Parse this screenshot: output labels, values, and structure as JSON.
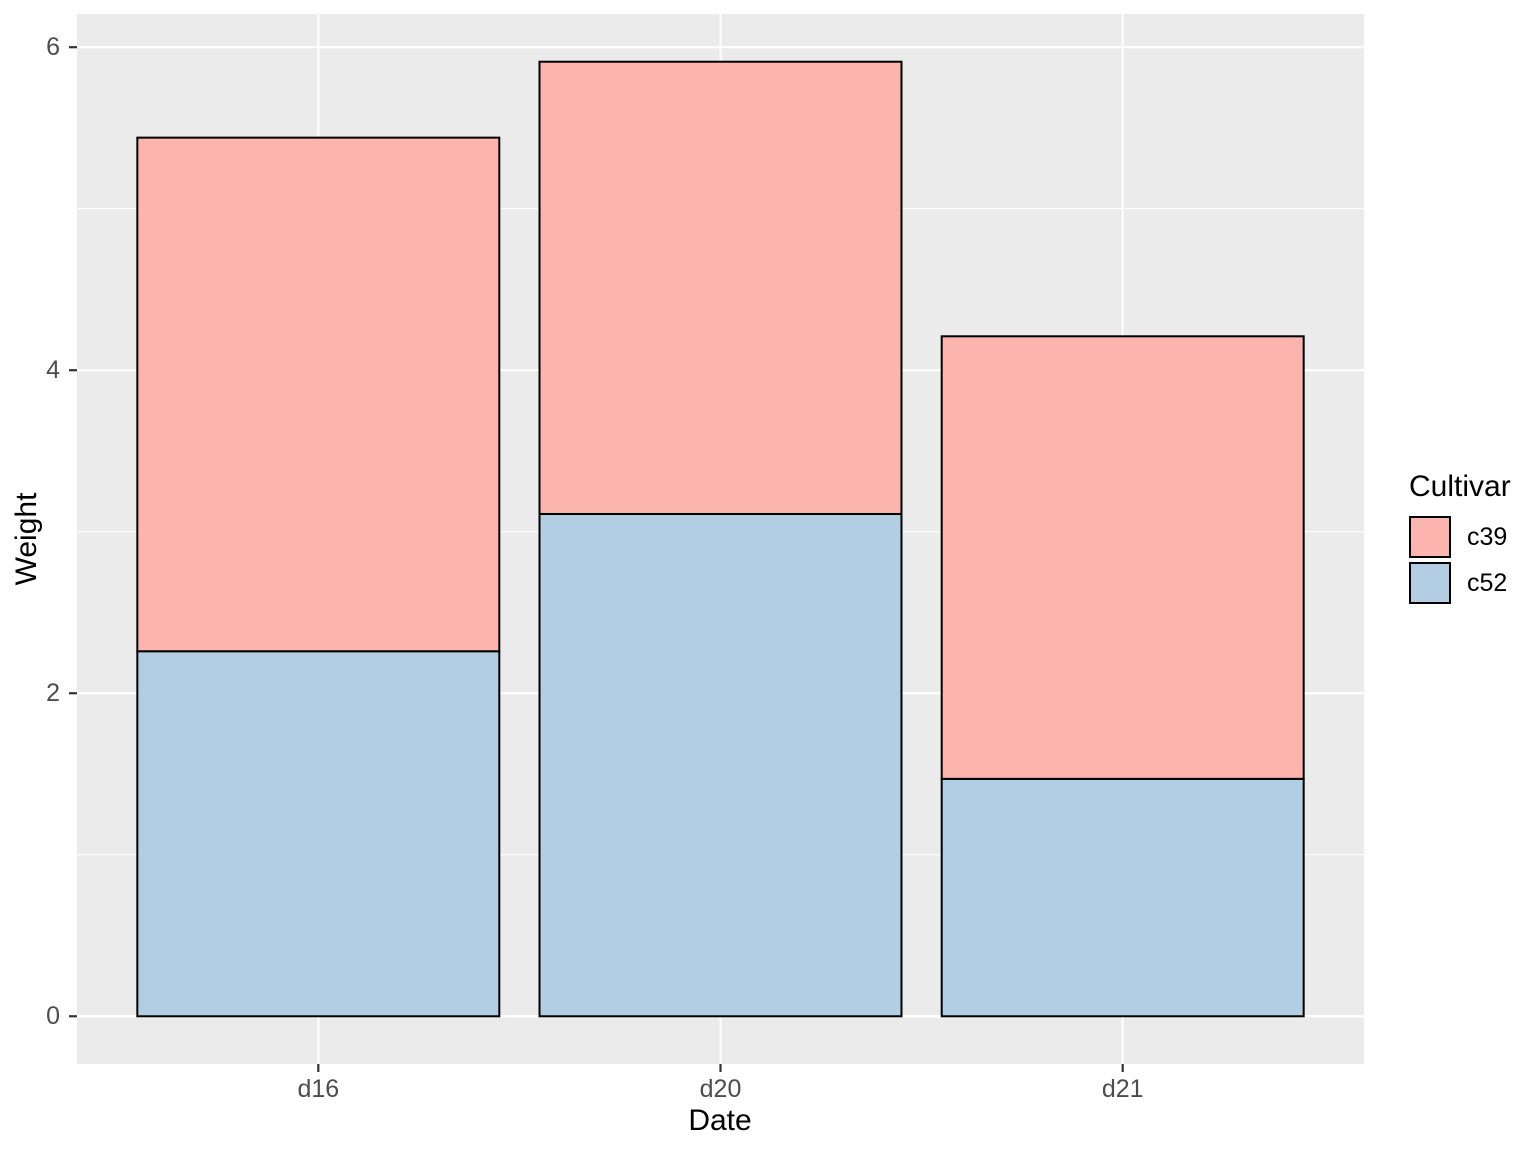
{
  "chart_data": {
    "type": "bar",
    "stacked": true,
    "title": "",
    "xlabel": "Date",
    "ylabel": "Weight",
    "categories": [
      "d16",
      "d20",
      "d21"
    ],
    "series": [
      {
        "name": "c39",
        "color": "#FBB4AE",
        "values": [
          3.18,
          2.8,
          2.74
        ]
      },
      {
        "name": "c52",
        "color": "#B3CDE3",
        "values": [
          2.26,
          3.11,
          1.47
        ]
      }
    ],
    "stacked_totals": [
      5.44,
      5.91,
      4.21
    ],
    "y_axis": {
      "major_ticks": [
        0,
        2,
        4,
        6
      ],
      "tick_labels": [
        "0",
        "2",
        "4",
        "6"
      ],
      "minor_ticks": [
        1,
        3,
        5
      ],
      "ylim": [
        0,
        6
      ],
      "expansion": 0.05
    },
    "x_axis": {
      "tick_labels": [
        "d16",
        "d20",
        "d21"
      ]
    },
    "legend": {
      "title": "Cultivar",
      "position": "right",
      "entries": [
        "c39",
        "c52"
      ]
    },
    "style": {
      "panel_bg": "#EBEBEB",
      "grid_color": "#FFFFFF",
      "bar_outline": "#000000",
      "tick_mark_color": "#333333",
      "tick_label_color": "#4D4D4D",
      "axis_title_color": "#000000",
      "plot_bg": "#FFFFFF"
    }
  }
}
